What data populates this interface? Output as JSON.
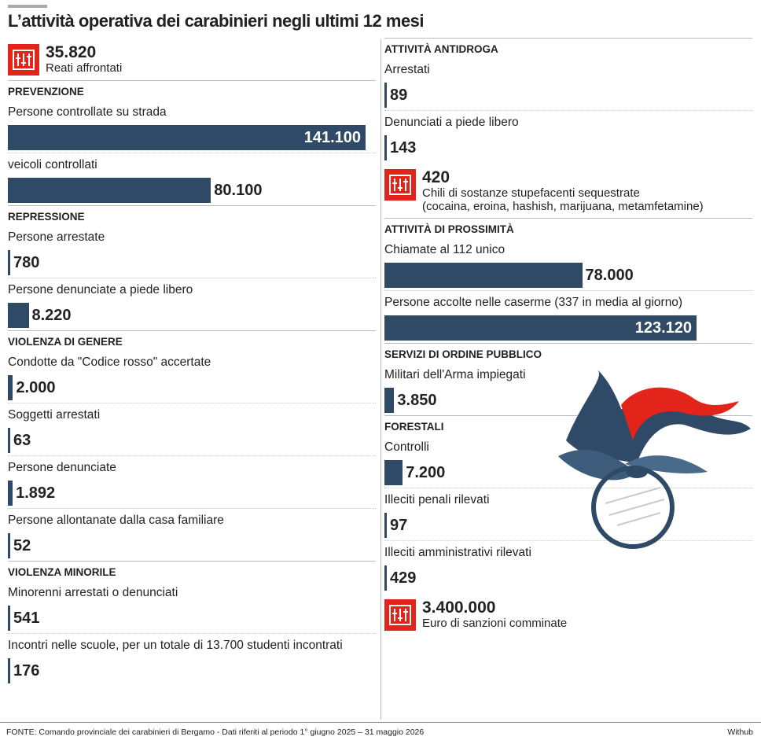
{
  "title": "L’attività operativa dei carabinieri negli ultimi 12 mesi",
  "left": [
    {
      "type": "stat",
      "value": 35820,
      "value_label": "35.820",
      "label": "Reati affrontati"
    },
    {
      "type": "section",
      "heading": "PREVENZIONE",
      "items": [
        {
          "label": "Persone controllate su strada",
          "value": 141100,
          "value_label": "141.100"
        },
        {
          "label": "veicoli controllati",
          "value": 80100,
          "value_label": "80.100"
        }
      ]
    },
    {
      "type": "section",
      "heading": "REPRESSIONE",
      "items": [
        {
          "label": "Persone arrestate",
          "value": 780
        },
        {
          "label": "Persone denunciate a piede libero",
          "value": 8220,
          "value_label": "8.220"
        }
      ]
    },
    {
      "type": "section",
      "heading": "VIOLENZA DI GENERE",
      "items": [
        {
          "label": "Condotte da \"Codice rosso\" accertate",
          "value": 2000,
          "value_label": "2.000"
        },
        {
          "label": "Soggetti arrestati",
          "value": 63
        },
        {
          "label": "Persone denunciate",
          "value": 1892,
          "value_label": "1.892"
        },
        {
          "label": "Persone allontanate dalla casa familiare",
          "value": 52
        }
      ]
    },
    {
      "type": "section",
      "heading": "VIOLENZA MINORILE",
      "items": [
        {
          "label": "Minorenni arrestati o denunciati",
          "value": 541
        },
        {
          "label": "Incontri nelle scuole, per un totale di 13.700 studenti incontrati",
          "value": 176
        }
      ]
    }
  ],
  "right": [
    {
      "type": "section",
      "heading": "ATTIVITÀ ANTIDROGA",
      "items": [
        {
          "label": "Arrestati",
          "value": 89
        },
        {
          "label": "Denunciati a piede libero",
          "value": 143
        }
      ]
    },
    {
      "type": "stat",
      "value": 420,
      "label": "Chili di sostanze stupefacenti sequestrate",
      "note": "(cocaina, eroina, hashish, marijuana, metamfetamine)"
    },
    {
      "type": "section",
      "heading": "ATTIVITÀ DI PROSSIMITÀ",
      "items": [
        {
          "label": "Chiamate al 112 unico",
          "value": 78000,
          "value_label": "78.000"
        },
        {
          "label": "Persone accolte nelle caserme (337 in media al giorno)",
          "value": 123120,
          "value_label": "123.120"
        }
      ]
    },
    {
      "type": "section",
      "heading": "SERVIZI DI ORDINE PUBBLICO",
      "items": [
        {
          "label": "Militari dell'Arma impiegati",
          "value": 3850,
          "value_label": "3.850"
        }
      ]
    },
    {
      "type": "section",
      "heading": "FORESTALI",
      "items": [
        {
          "label": "Controlli",
          "value": 7200,
          "value_label": "7.200"
        },
        {
          "label": "Illeciti penali rilevati",
          "value": 97
        },
        {
          "label": "Illeciti amministrativi rilevati",
          "value": 429
        }
      ]
    },
    {
      "type": "stat",
      "value": 3400000,
      "value_label": "3.400.000",
      "label": "Euro di sanzioni comminate"
    }
  ],
  "footer": {
    "source": "FONTE: Comando provinciale dei carabinieri di Bergamo - Dati riferiti al periodo 1° giugno 2025 – 31 maggio 2026",
    "credit": "Withub"
  }
}
